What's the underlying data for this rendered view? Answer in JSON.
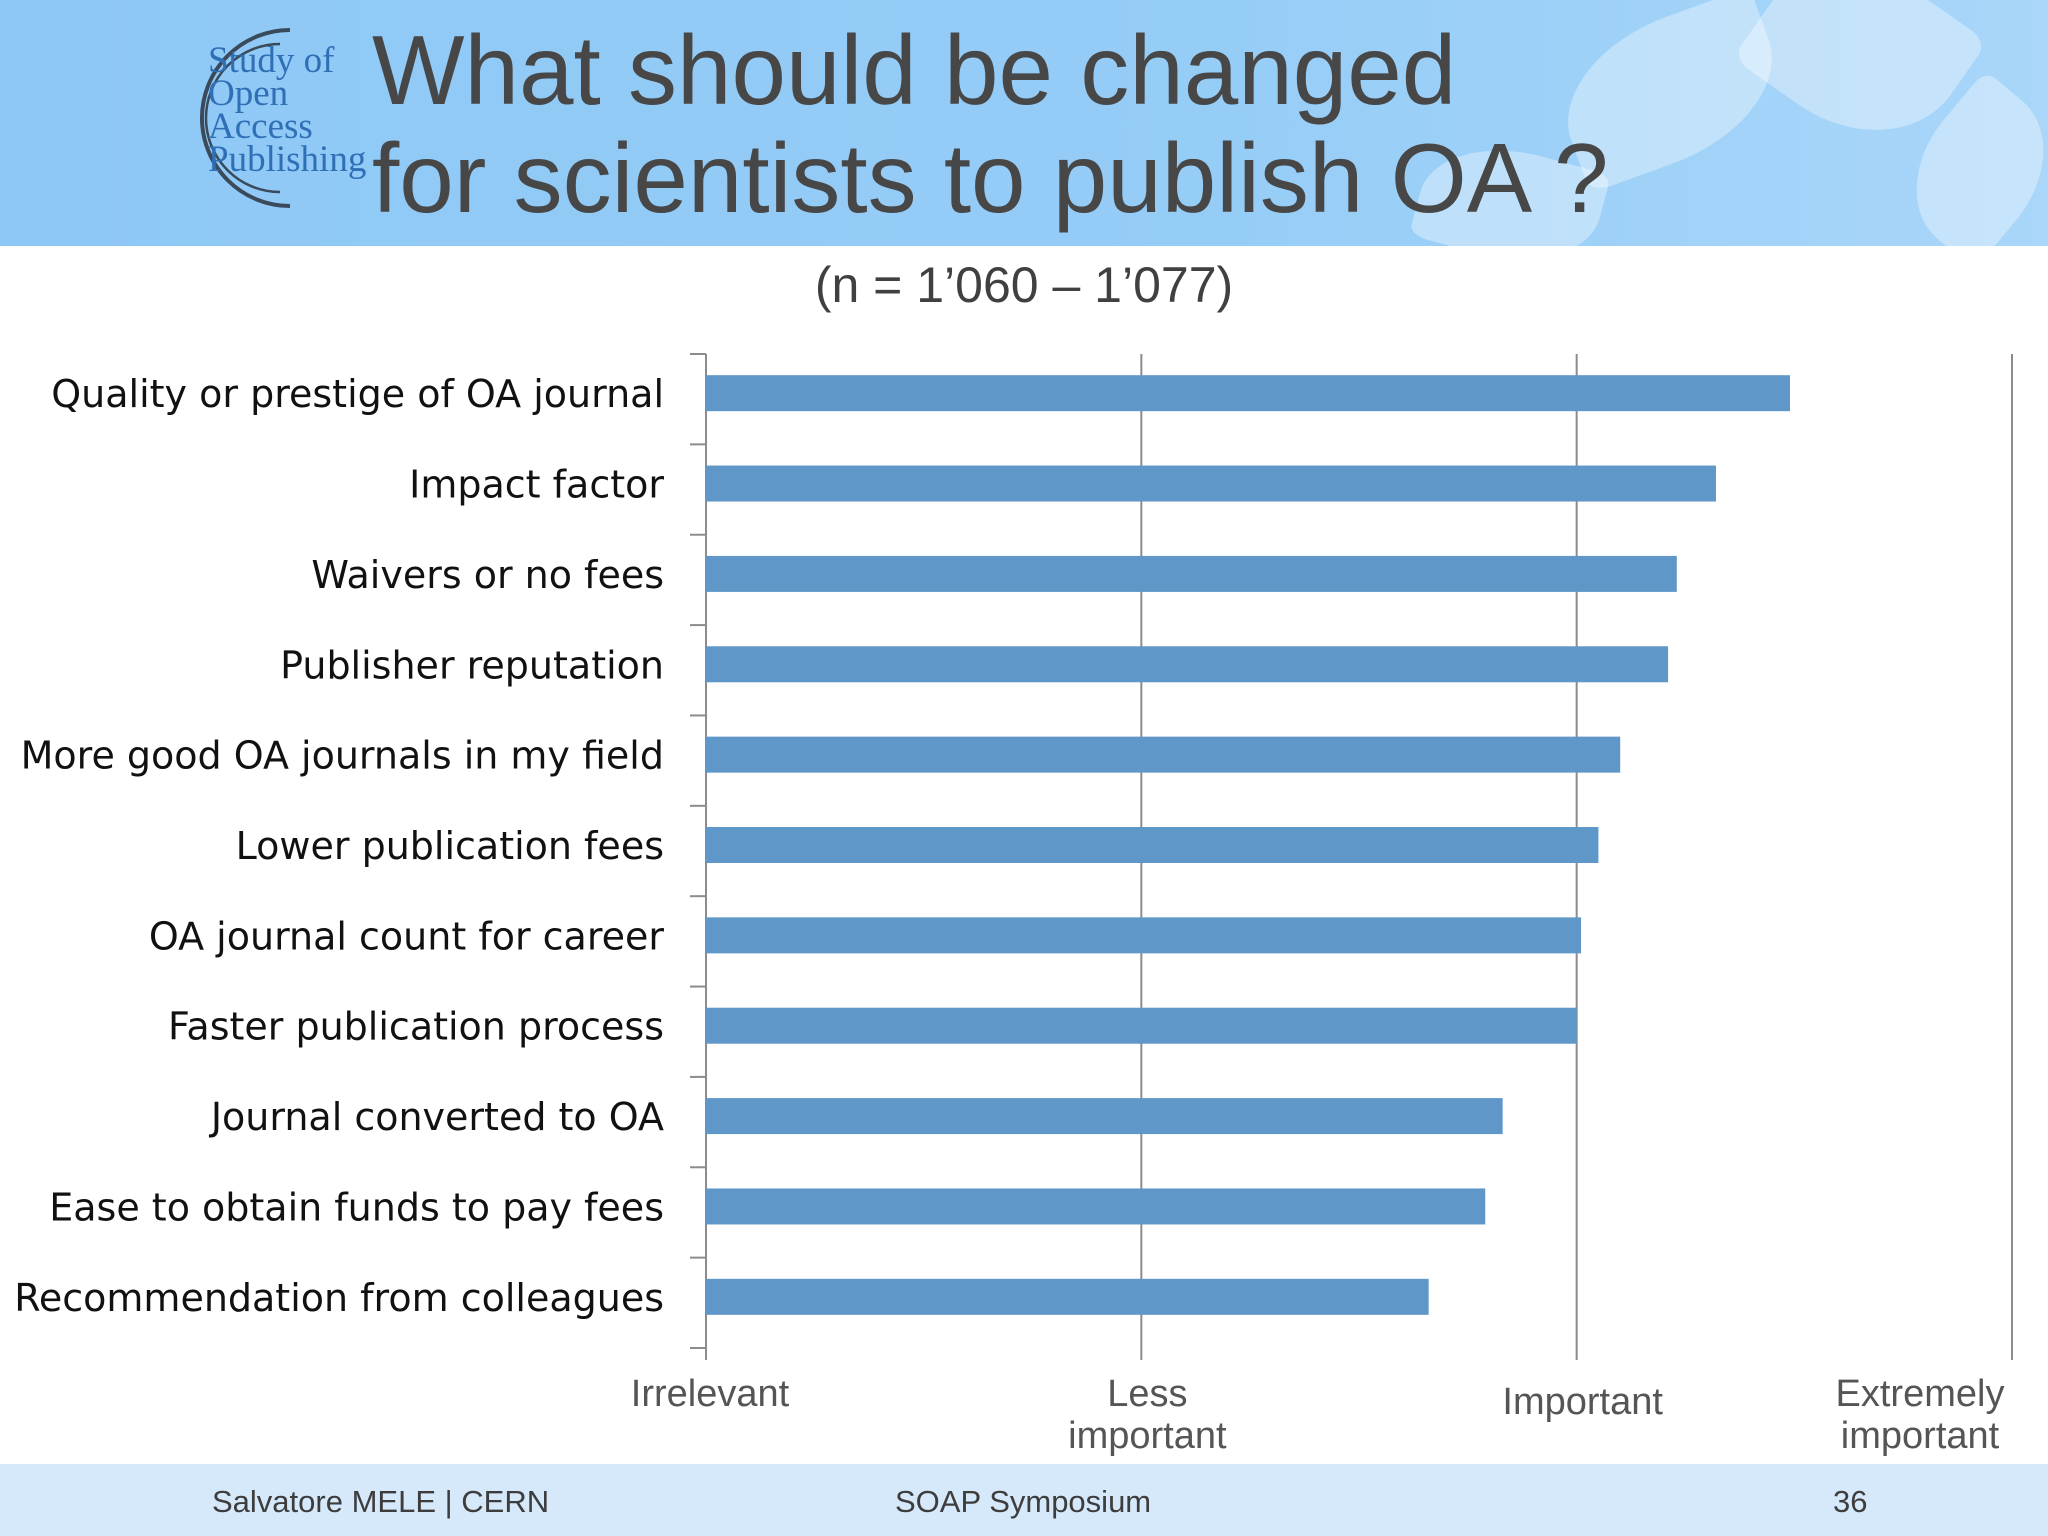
{
  "slide": {
    "logo_text": [
      "Study of",
      "Open",
      "Access",
      "Publishing"
    ],
    "title_line1": "What should be changed",
    "title_line2": "for scientists to publish OA ?",
    "subtitle": "(n = 1’060 – 1’077)"
  },
  "footer": {
    "author": "Salvatore MELE | CERN",
    "event": "SOAP Symposium",
    "page": "36"
  },
  "colors": {
    "bar": "#6097c9",
    "grid": "#8c8c8c",
    "header": "#8ec8f6",
    "footer": "#d6e9fb"
  },
  "chart_data": {
    "type": "bar",
    "orientation": "horizontal",
    "categories": [
      "Quality or prestige of OA journal",
      "Impact factor",
      "Waivers or no fees",
      "Publisher reputation",
      "More good OA journals in my field",
      "Lower publication fees",
      "OA journal count for career",
      "Faster publication process",
      "Journal converted to OA",
      "Ease to obtain funds to pay fees",
      "Recommendation from colleagues"
    ],
    "values": [
      3.49,
      3.32,
      3.23,
      3.21,
      3.1,
      3.05,
      3.01,
      3.0,
      2.83,
      2.79,
      2.66
    ],
    "x_tick_labels": [
      [
        "Irrelevant"
      ],
      [
        "Less",
        "important"
      ],
      [
        "Important"
      ],
      [
        "Extremely",
        "important"
      ]
    ],
    "xlim": [
      1,
      4
    ],
    "grid": true,
    "legend": "none",
    "title": "What should be changed for scientists to publish OA ?",
    "subtitle": "(n = 1’060 – 1’077)"
  }
}
